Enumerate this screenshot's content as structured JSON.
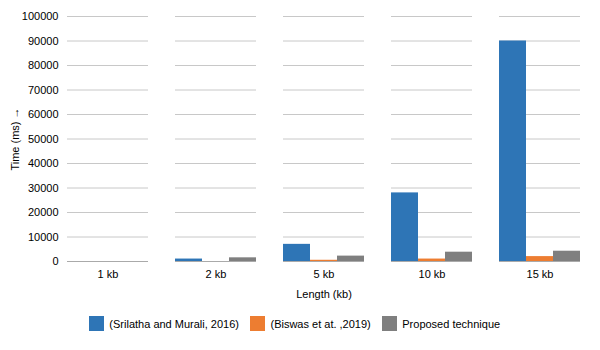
{
  "chart_data": {
    "type": "bar",
    "categories": [
      "1 kb",
      "2 kb",
      "5 kb",
      "10 kb",
      "15 kb"
    ],
    "series": [
      {
        "name": "(Srilatha and Murali, 2016)",
        "color": "#2E75B6",
        "values": [
          0,
          1000,
          7000,
          28000,
          90000
        ]
      },
      {
        "name": "(Biswas et at. ,2019)",
        "color": "#ED7D31",
        "values": [
          0,
          0,
          500,
          1000,
          2000
        ]
      },
      {
        "name": "Proposed technique",
        "color": "#7F7F7F",
        "values": [
          0,
          1500,
          2200,
          3800,
          4200
        ]
      }
    ],
    "xlabel": "Length (kb)",
    "ylabel": "Time (ms)",
    "ylim": [
      0,
      100000
    ],
    "yticks": [
      0,
      10000,
      20000,
      30000,
      40000,
      50000,
      60000,
      70000,
      80000,
      90000,
      100000
    ],
    "grid": true,
    "legend": "bottom"
  }
}
